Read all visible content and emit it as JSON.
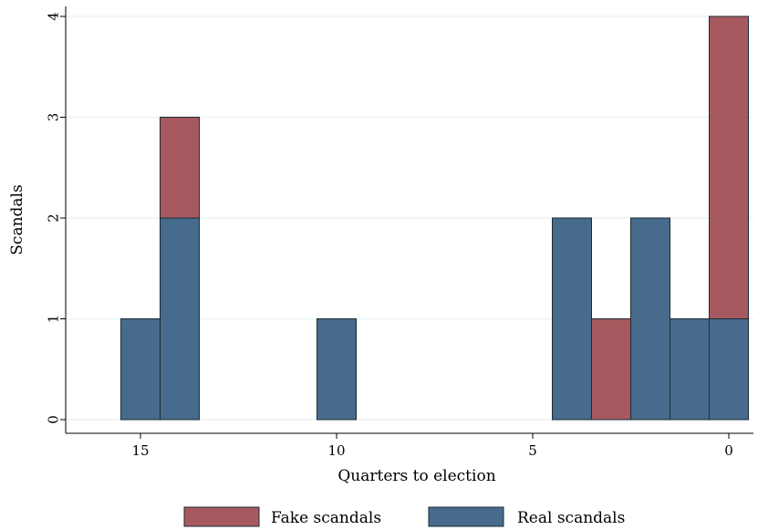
{
  "chart_data": {
    "type": "bar",
    "stacked": true,
    "xlabel": "Quarters to election",
    "ylabel": "Scandals",
    "x_reversed": true,
    "xlim": [
      16.5,
      -0.5
    ],
    "ylim": [
      0,
      4
    ],
    "xticks": [
      15,
      10,
      5,
      0
    ],
    "yticks": [
      0,
      1,
      2,
      3,
      4
    ],
    "grid": true,
    "legend_position": "bottom",
    "x": [
      15,
      14,
      10,
      4,
      3,
      2,
      1,
      0
    ],
    "series": [
      {
        "name": "Real scandals",
        "color": "#476b8c",
        "values": [
          1,
          2,
          1,
          2,
          0,
          2,
          1,
          1
        ]
      },
      {
        "name": "Fake scandals",
        "color": "#a65a5f",
        "values": [
          0,
          1,
          0,
          0,
          1,
          0,
          0,
          3
        ]
      }
    ],
    "legend": [
      {
        "label": "Fake scandals",
        "color": "#a65a5f"
      },
      {
        "label": "Real scandals",
        "color": "#476b8c"
      }
    ]
  }
}
